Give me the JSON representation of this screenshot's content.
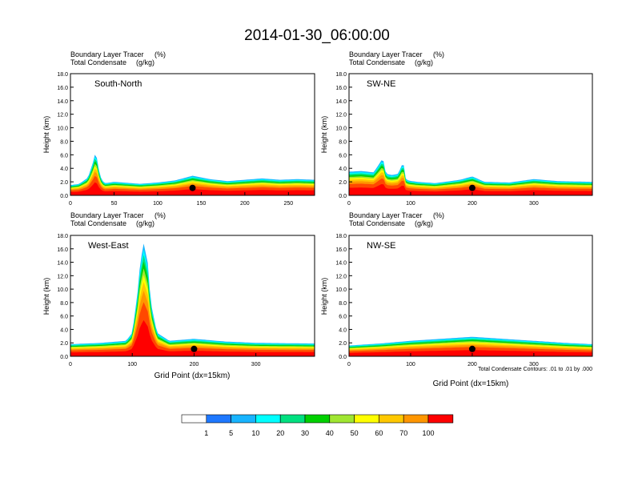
{
  "figure": {
    "title": "2014-01-30_06:00:00",
    "xlabel": "Grid Point (dx=15km)",
    "ylabel": "Height (km)",
    "subtitle_left_1": "Boundary Layer Tracer",
    "subtitle_right_1": "(%)",
    "subtitle_left_2": "Total Condensate",
    "subtitle_right_2": "(g/kg)",
    "contour_note": "Total Condensate Contours: .01 to .01 by .000"
  },
  "colorbar": {
    "labels": [
      "1",
      "5",
      "10",
      "20",
      "30",
      "40",
      "50",
      "60",
      "70",
      "100"
    ],
    "colors": [
      "#ffffff",
      "#1e78ff",
      "#18b4ff",
      "#00ffff",
      "#00e080",
      "#00d000",
      "#a0e632",
      "#ffff00",
      "#ffc800",
      "#ff9600",
      "#ff4800",
      "#ff0000"
    ]
  },
  "chart_data": [
    {
      "type": "heatmap",
      "name": "South-North",
      "label": "South-North",
      "xlim": [
        0,
        280
      ],
      "xticks": [
        0,
        50,
        100,
        150,
        200,
        250
      ],
      "ylim": [
        0,
        18
      ],
      "yticks": [
        "0.0",
        "2.0",
        "4.0",
        "6.0",
        "8.0",
        "10.0",
        "12.0",
        "14.0",
        "16.0",
        "18.0"
      ],
      "marker_x": 140,
      "tracer_profile": {
        "x": [
          0,
          10,
          20,
          25,
          28,
          30,
          33,
          36,
          40,
          50,
          60,
          80,
          100,
          120,
          140,
          160,
          180,
          200,
          220,
          240,
          260,
          280
        ],
        "top": [
          1.5,
          1.7,
          2.6,
          4.5,
          6.0,
          5.8,
          3.5,
          2.2,
          1.8,
          2.0,
          1.9,
          1.7,
          1.9,
          2.2,
          2.9,
          2.4,
          2.1,
          2.3,
          2.5,
          2.3,
          2.4,
          2.3
        ]
      }
    },
    {
      "type": "heatmap",
      "name": "SW-NE",
      "label": "SW-NE",
      "xlim": [
        0,
        395
      ],
      "xticks": [
        0,
        100,
        200,
        300
      ],
      "ylim": [
        0,
        18
      ],
      "yticks": [
        "0.0",
        "2.0",
        "4.0",
        "6.0",
        "8.0",
        "10.0",
        "12.0",
        "14.0",
        "16.0",
        "18.0"
      ],
      "marker_x": 200,
      "tracer_profile": {
        "x": [
          0,
          20,
          40,
          55,
          60,
          70,
          80,
          88,
          92,
          96,
          110,
          140,
          180,
          200,
          220,
          260,
          300,
          340,
          395
        ],
        "top": [
          3.5,
          3.6,
          3.4,
          5.5,
          3.2,
          3.0,
          3.2,
          5.0,
          2.5,
          2.2,
          2.0,
          1.8,
          2.3,
          2.8,
          2.0,
          1.9,
          2.4,
          2.1,
          2.0
        ]
      }
    },
    {
      "type": "heatmap",
      "name": "West-East",
      "label": "West-East",
      "xlim": [
        0,
        395
      ],
      "xticks": [
        0,
        100,
        200,
        300
      ],
      "ylim": [
        0,
        18
      ],
      "yticks": [
        "0.0",
        "2.0",
        "4.0",
        "6.0",
        "8.0",
        "10.0",
        "12.0",
        "14.0",
        "16.0",
        "18.0"
      ],
      "marker_x": 200,
      "tracer_profile": {
        "x": [
          0,
          50,
          90,
          100,
          108,
          112,
          118,
          125,
          130,
          140,
          160,
          200,
          250,
          300,
          395
        ],
        "top": [
          1.8,
          2.0,
          2.3,
          3.5,
          9.0,
          13.0,
          17.0,
          14.0,
          8.0,
          3.5,
          2.3,
          2.6,
          2.2,
          2.0,
          1.9
        ]
      }
    },
    {
      "type": "heatmap",
      "name": "NW-SE",
      "label": "NW-SE",
      "xlim": [
        0,
        395
      ],
      "xticks": [
        0,
        100,
        200,
        300
      ],
      "ylim": [
        0,
        18
      ],
      "yticks": [
        "0.0",
        "2.0",
        "4.0",
        "6.0",
        "8.0",
        "10.0",
        "12.0",
        "14.0",
        "16.0",
        "18.0"
      ],
      "marker_x": 200,
      "tracer_profile": {
        "x": [
          0,
          50,
          100,
          150,
          200,
          250,
          300,
          350,
          395
        ],
        "top": [
          1.6,
          1.9,
          2.3,
          2.6,
          2.9,
          2.6,
          2.3,
          2.0,
          1.8
        ]
      }
    }
  ]
}
